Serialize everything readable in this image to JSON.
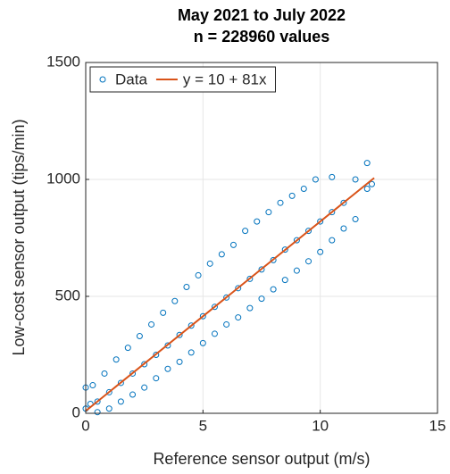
{
  "chart_data": {
    "type": "scatter",
    "title": [
      "May 2021 to July 2022",
      "n = 228960 values"
    ],
    "xlabel": "Reference sensor output (m/s)",
    "ylabel": "Low-cost sensor output (tips/min)",
    "xlim": [
      0,
      15
    ],
    "ylim": [
      0,
      1500
    ],
    "xticks": [
      0,
      5,
      10,
      15
    ],
    "yticks": [
      0,
      500,
      1000,
      1500
    ],
    "grid": true,
    "legend": "northwest",
    "series": [
      {
        "name": "Data",
        "color": "#0072bd",
        "style": "circle",
        "x": [
          0,
          0.2,
          0.5,
          1,
          1.5,
          2,
          2.5,
          3,
          3.5,
          4,
          4.5,
          5,
          5.5,
          6,
          6.5,
          7,
          7.5,
          8,
          8.5,
          9,
          9.5,
          10,
          10.5,
          11,
          12,
          0,
          0.3,
          0.8,
          1.3,
          1.8,
          2.3,
          2.8,
          3.3,
          3.8,
          4.3,
          4.8,
          5.3,
          5.8,
          6.3,
          6.8,
          7.3,
          7.8,
          8.3,
          8.8,
          9.3,
          9.8,
          10.5,
          11.5,
          12,
          0.5,
          1,
          1.5,
          2,
          2.5,
          3,
          3.5,
          4,
          4.5,
          5,
          5.5,
          6,
          6.5,
          7,
          7.5,
          8,
          8.5,
          9,
          9.5,
          10,
          10.5,
          11,
          11.5,
          12.2
        ],
        "values": [
          20,
          40,
          50,
          90,
          130,
          170,
          210,
          250,
          290,
          335,
          375,
          415,
          455,
          495,
          535,
          575,
          615,
          655,
          700,
          740,
          780,
          820,
          860,
          900,
          960,
          110,
          120,
          170,
          230,
          280,
          330,
          380,
          430,
          480,
          540,
          590,
          640,
          680,
          720,
          780,
          820,
          860,
          900,
          930,
          960,
          1000,
          1010,
          1000,
          1070,
          5,
          20,
          50,
          80,
          110,
          150,
          190,
          220,
          260,
          300,
          340,
          380,
          410,
          450,
          490,
          530,
          570,
          610,
          650,
          690,
          740,
          790,
          830,
          980
        ]
      },
      {
        "name": "y = 10 + 81x",
        "color": "#d95319",
        "style": "line",
        "x": [
          0,
          12.3
        ],
        "values": [
          10,
          1006.3
        ]
      }
    ]
  }
}
